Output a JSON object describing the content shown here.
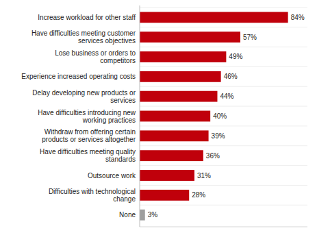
{
  "chart_data": {
    "type": "bar",
    "orientation": "horizontal",
    "categories": [
      "None",
      "Difficulties with technological change",
      "Outsource work",
      "Have difficulties meeting quality standards",
      "Withdraw from offering certain products or services altogether",
      "Have difficulties introducing new working practices",
      "Delay developing new products or services",
      "Experience increased operating costs",
      "Lose business or orders to competitors",
      "Have difficulties meeting customer services objectives",
      "Increase workload for other staff"
    ],
    "values": [
      3,
      28,
      31,
      36,
      39,
      40,
      44,
      46,
      49,
      57,
      84
    ],
    "value_labels": [
      "3%",
      "28%",
      "31%",
      "36%",
      "39%",
      "40%",
      "44%",
      "46%",
      "49%",
      "57%",
      "84%"
    ],
    "colors": [
      "#9e9e9e",
      "#c0000b",
      "#c0000b",
      "#c0000b",
      "#c0000b",
      "#c0000b",
      "#c0000b",
      "#c0000b",
      "#c0000b",
      "#c0000b",
      "#c0000b"
    ],
    "xlim": [
      0,
      95
    ],
    "xticks": [],
    "data_labels": true,
    "tick_labels": "y",
    "grid": false
  }
}
